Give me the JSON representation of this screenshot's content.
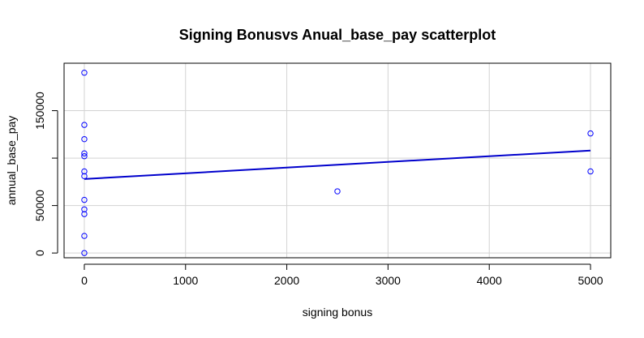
{
  "chart_data": {
    "type": "scatter",
    "title": "Signing Bonusvs Anual_base_pay scatterplot",
    "xlabel": "signing bonus",
    "ylabel": "annual_base_pay",
    "xlim": [
      -200,
      5200
    ],
    "ylim": [
      -5000,
      200000
    ],
    "x_ticks": [
      0,
      1000,
      2000,
      3000,
      4000,
      5000
    ],
    "x_tick_labels": [
      "0",
      "1000",
      "2000",
      "3000",
      "4000",
      "5000"
    ],
    "y_ticks": [
      0,
      50000,
      100000,
      150000
    ],
    "y_tick_labels": [
      "0",
      "50000",
      "",
      "150000"
    ],
    "grid": true,
    "point_color": "#0000ff",
    "series": [
      {
        "values": [
          {
            "x": 0,
            "y": 190000
          },
          {
            "x": 0,
            "y": 135000
          },
          {
            "x": 0,
            "y": 120000
          },
          {
            "x": 0,
            "y": 105000
          },
          {
            "x": 0,
            "y": 102000
          },
          {
            "x": 0,
            "y": 86000
          },
          {
            "x": 0,
            "y": 81000
          },
          {
            "x": 0,
            "y": 56000
          },
          {
            "x": 0,
            "y": 46000
          },
          {
            "x": 0,
            "y": 41000
          },
          {
            "x": 0,
            "y": 18000
          },
          {
            "x": 0,
            "y": 0
          },
          {
            "x": 2500,
            "y": 65000
          },
          {
            "x": 5000,
            "y": 126000
          },
          {
            "x": 5000,
            "y": 86000
          }
        ]
      }
    ],
    "regression_line": {
      "color": "#0000cc",
      "points": [
        {
          "x": 0,
          "y": 78000
        },
        {
          "x": 5000,
          "y": 108000
        }
      ]
    }
  }
}
